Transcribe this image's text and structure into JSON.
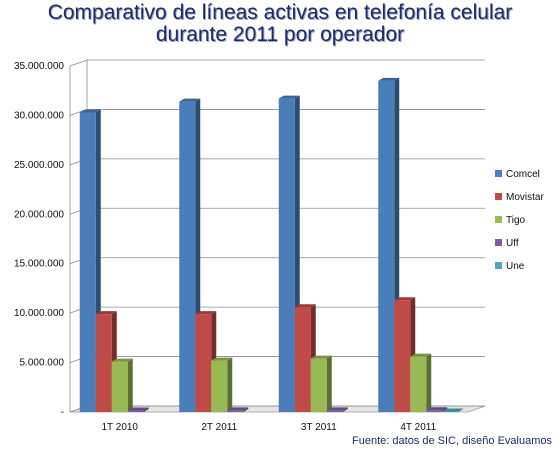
{
  "chart_data": {
    "type": "bar",
    "title_line1": "Comparativo de líneas activas en telefonía celular",
    "title_line2": "durante 2011 por operador",
    "source": "Fuente: datos de SIC, diseño Evaluamos",
    "categories": [
      "1T 2010",
      "2T 2011",
      "3T 2011",
      "4T 2011"
    ],
    "y_ticks": [
      "35.000.000",
      "30.000.000",
      "25.000.000",
      "20.000.000",
      "15.000.000",
      "10.000.000",
      "5.000.000",
      "-"
    ],
    "ylim": [
      0,
      35000000
    ],
    "grid": true,
    "legend_position": "right",
    "series": [
      {
        "name": "Comcel",
        "color": "#4a7ebb",
        "values": [
          30300000,
          31400000,
          31700000,
          33500000
        ]
      },
      {
        "name": "Movistar",
        "color": "#be4b48",
        "values": [
          9900000,
          9900000,
          10600000,
          11300000
        ]
      },
      {
        "name": "Tigo",
        "color": "#98b954",
        "values": [
          5100000,
          5200000,
          5400000,
          5600000
        ]
      },
      {
        "name": "Uff",
        "color": "#7d60a0",
        "values": [
          150000,
          160000,
          170000,
          180000
        ]
      },
      {
        "name": "Une",
        "color": "#46aac5",
        "values": [
          0,
          0,
          0,
          50000
        ]
      }
    ]
  }
}
